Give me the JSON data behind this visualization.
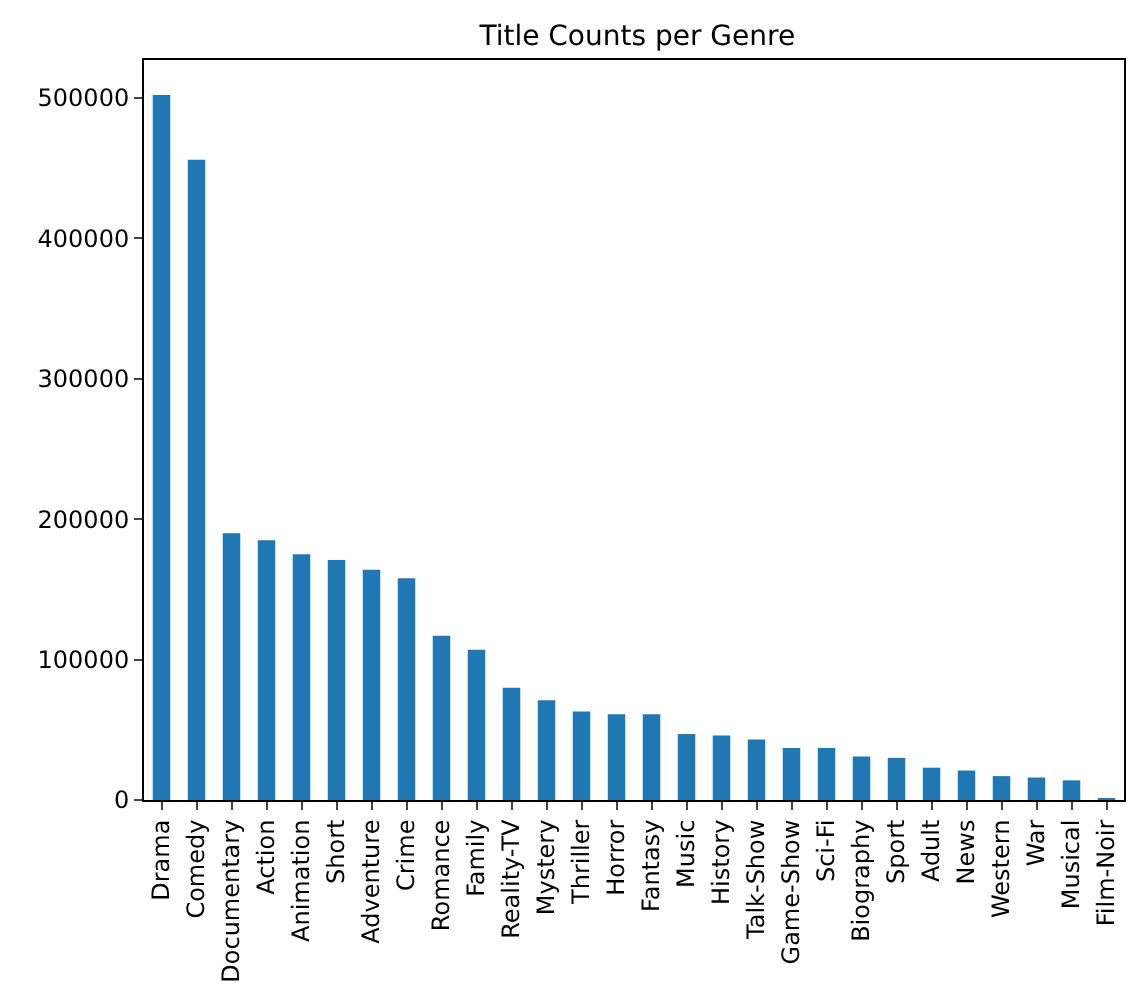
{
  "chart_data": {
    "type": "bar",
    "title": "Title Counts per Genre",
    "categories": [
      "Drama",
      "Comedy",
      "Documentary",
      "Action",
      "Animation",
      "Short",
      "Adventure",
      "Crime",
      "Romance",
      "Family",
      "Reality-TV",
      "Mystery",
      "Thriller",
      "Horror",
      "Fantasy",
      "Music",
      "History",
      "Talk-Show",
      "Game-Show",
      "Sci-Fi",
      "Biography",
      "Sport",
      "Adult",
      "News",
      "Western",
      "War",
      "Musical",
      "Film-Noir"
    ],
    "values": [
      502000,
      456000,
      190000,
      185000,
      175000,
      171000,
      164000,
      158000,
      117000,
      107000,
      80000,
      71000,
      63000,
      61000,
      61000,
      47000,
      46000,
      43000,
      37000,
      37000,
      31000,
      30000,
      23000,
      21000,
      17000,
      16000,
      14000,
      1000
    ],
    "color": "#1f77b4",
    "ylim": [
      0,
      527000
    ],
    "yticks": [
      0,
      100000,
      200000,
      300000,
      400000,
      500000
    ],
    "grid": false,
    "legend": false
  }
}
